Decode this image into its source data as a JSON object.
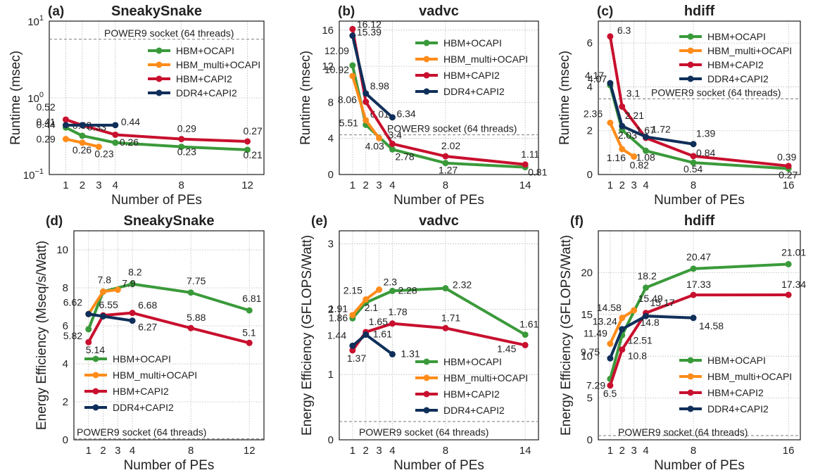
{
  "colors": {
    "HBM+OCAPI": "#3a9a3a",
    "HBM_multi+OCAPI": "#ff8c1a",
    "HBM+CAPI2": "#c8102e",
    "DDR4+CAPI2": "#0f2f5a"
  },
  "chart_data": [
    {
      "type": "line",
      "panel": "(a)",
      "title": "SneakySnake",
      "xlabel": "Number of PEs",
      "ylabel": "Runtime (msec)",
      "yscale": "log",
      "ylim": [
        0.1,
        10
      ],
      "xlim": [
        0,
        13
      ],
      "xticks": [
        1,
        2,
        3,
        4,
        8,
        12
      ],
      "yticks": [
        {
          "value": 0.1,
          "base": "10",
          "exp": "−1"
        },
        {
          "value": 1,
          "base": "10",
          "exp": "0"
        },
        {
          "value": 10,
          "base": "10",
          "exp": "1"
        }
      ],
      "grid": true,
      "legend": "upper-center",
      "ref": {
        "label": "POWER9 socket (64 threads)",
        "value": 5.8
      },
      "series": [
        {
          "name": "HBM+OCAPI",
          "x": [
            1,
            2,
            4,
            8,
            12
          ],
          "y": [
            0.41,
            0.32,
            0.26,
            0.23,
            0.21
          ],
          "labels": [
            "0.41",
            "0.32",
            "0.26",
            "0.23",
            "0.21"
          ]
        },
        {
          "name": "HBM_multi+OCAPI",
          "x": [
            1,
            2,
            3
          ],
          "y": [
            0.29,
            0.26,
            0.23
          ],
          "labels": [
            "0.29",
            "0.26",
            "0.23"
          ]
        },
        {
          "name": "HBM+CAPI2",
          "x": [
            1,
            2,
            4,
            8,
            12
          ],
          "y": [
            0.52,
            0.44,
            0.33,
            0.29,
            0.27
          ],
          "labels": [
            "0.52",
            "",
            "0.33",
            "0.29",
            "0.27"
          ]
        },
        {
          "name": "DDR4+CAPI2",
          "x": [
            1,
            2,
            4
          ],
          "y": [
            0.44,
            0.44,
            0.44
          ],
          "labels": [
            "0.44",
            "",
            "0.44"
          ]
        }
      ]
    },
    {
      "type": "line",
      "panel": "(b)",
      "title": "vadvc",
      "xlabel": "Number of PEs",
      "ylabel": "Runtime (msec)",
      "yscale": "linear",
      "ylim": [
        0,
        17
      ],
      "xlim": [
        0,
        15
      ],
      "xticks": [
        1,
        2,
        3,
        4,
        8,
        14
      ],
      "yticks": [
        0,
        4,
        8,
        12,
        16
      ],
      "grid": true,
      "legend": "upper-right",
      "ref": {
        "label": "POWER9 socket (64 threads)",
        "value": 4.4
      },
      "series": [
        {
          "name": "HBM+OCAPI",
          "x": [
            1,
            2,
            4,
            8,
            14
          ],
          "y": [
            12.09,
            5.51,
            2.78,
            1.27,
            0.81
          ],
          "labels": [
            "12.09",
            "5.51",
            "2.78",
            "1.27",
            "0.81"
          ]
        },
        {
          "name": "HBM_multi+OCAPI",
          "x": [
            1,
            2,
            3
          ],
          "y": [
            10.92,
            6.01,
            4.03
          ],
          "labels": [
            "10.92",
            "6.01",
            "4.03"
          ]
        },
        {
          "name": "HBM+CAPI2",
          "x": [
            1,
            2,
            4,
            8,
            14
          ],
          "y": [
            16.12,
            8.06,
            3.4,
            2.02,
            1.11
          ],
          "labels": [
            "16.12",
            "8.06",
            "3.4",
            "2.02",
            "1.11"
          ]
        },
        {
          "name": "DDR4+CAPI2",
          "x": [
            1,
            2,
            4
          ],
          "y": [
            15.39,
            8.98,
            6.34
          ],
          "labels": [
            "15.39",
            "8.98",
            "6.34"
          ]
        }
      ]
    },
    {
      "type": "line",
      "panel": "(c)",
      "title": "hdiff",
      "xlabel": "Number of PEs",
      "ylabel": "Runtime (msec)",
      "yscale": "linear",
      "ylim": [
        0,
        7
      ],
      "xlim": [
        0,
        17
      ],
      "xticks": [
        1,
        2,
        3,
        4,
        8,
        16
      ],
      "yticks": [
        0,
        2,
        4,
        6
      ],
      "grid": true,
      "legend": "upper-right",
      "ref": {
        "label": "POWER9 socket (64 threads)",
        "value": 3.45
      },
      "series": [
        {
          "name": "HBM+OCAPI",
          "x": [
            1,
            2,
            4,
            8,
            16
          ],
          "y": [
            4.07,
            2.03,
            1.08,
            0.54,
            0.27
          ],
          "labels": [
            "4.07",
            "2.03",
            "1.08",
            "0.54",
            "0.27"
          ]
        },
        {
          "name": "HBM_multi+OCAPI",
          "x": [
            1,
            2,
            3
          ],
          "y": [
            2.36,
            1.16,
            0.82
          ],
          "labels": [
            "2.36",
            "1.16",
            "0.82"
          ]
        },
        {
          "name": "HBM+CAPI2",
          "x": [
            1,
            2,
            4,
            8,
            16
          ],
          "y": [
            6.3,
            3.1,
            1.67,
            0.84,
            0.39
          ],
          "labels": [
            "6.3",
            "3.1",
            "1.67",
            "0.84",
            "0.39"
          ]
        },
        {
          "name": "DDR4+CAPI2",
          "x": [
            1,
            2,
            4,
            8
          ],
          "y": [
            4.17,
            2.21,
            1.72,
            1.39
          ],
          "labels": [
            "4.17",
            "2.21",
            "1.72",
            "1.39"
          ]
        }
      ]
    },
    {
      "type": "line",
      "panel": "(d)",
      "title": "SneakySnake",
      "xlabel": "Number of PEs",
      "ylabel": "Energy Efficiency (Mseq/s/Watt)",
      "yscale": "linear",
      "ylim": [
        0,
        11
      ],
      "xlim": [
        0,
        13
      ],
      "xticks": [
        1,
        2,
        3,
        4,
        8,
        12
      ],
      "yticks": [
        0,
        2,
        4,
        6,
        8,
        10
      ],
      "grid": true,
      "legend": "lower-left",
      "ref": {
        "label": "POWER9 socket (64 threads)",
        "value": 0.05
      },
      "series": [
        {
          "name": "HBM+OCAPI",
          "x": [
            1,
            2,
            4,
            8,
            12
          ],
          "y": [
            5.82,
            7.8,
            8.2,
            7.75,
            6.81
          ],
          "labels": [
            "5.82",
            "7.8",
            "8.2",
            "7.75",
            "6.81"
          ]
        },
        {
          "name": "HBM_multi+OCAPI",
          "x": [
            1,
            2,
            3
          ],
          "y": [
            6.62,
            7.8,
            7.9
          ],
          "labels": [
            "6.62",
            "",
            "7.9"
          ]
        },
        {
          "name": "HBM+CAPI2",
          "x": [
            1,
            2,
            4,
            8,
            12
          ],
          "y": [
            5.14,
            6.55,
            6.68,
            5.88,
            5.1
          ],
          "labels": [
            "5.14",
            "6.55",
            "6.68",
            "5.88",
            "5.1"
          ]
        },
        {
          "name": "DDR4+CAPI2",
          "x": [
            1,
            2,
            4
          ],
          "y": [
            6.62,
            6.5,
            6.27
          ],
          "labels": [
            "",
            "",
            "6.27"
          ]
        }
      ]
    },
    {
      "type": "line",
      "panel": "(e)",
      "title": "vadvc",
      "xlabel": "Number of PEs",
      "ylabel": "Energy Efficiency (GFLOPS/Watt)",
      "yscale": "linear",
      "ylim": [
        0,
        3.2
      ],
      "xlim": [
        0,
        15
      ],
      "xticks": [
        1,
        2,
        3,
        4,
        8,
        14
      ],
      "yticks": [
        0,
        1,
        2,
        3
      ],
      "grid": true,
      "legend": "lower-right",
      "ref": {
        "label": "POWER9 socket (64 threads)",
        "value": 0.28
      },
      "series": [
        {
          "name": "HBM+OCAPI",
          "x": [
            1,
            2,
            4,
            8,
            14
          ],
          "y": [
            1.86,
            2.1,
            2.28,
            2.32,
            1.61
          ],
          "labels": [
            "1.86",
            "2.1",
            "2.28",
            "2.32",
            "1.61"
          ]
        },
        {
          "name": "HBM_multi+OCAPI",
          "x": [
            1,
            2,
            3
          ],
          "y": [
            1.91,
            2.15,
            2.3
          ],
          "labels": [
            "1.91",
            "2.15",
            "2.3"
          ]
        },
        {
          "name": "HBM+CAPI2",
          "x": [
            1,
            2,
            4,
            8,
            14
          ],
          "y": [
            1.37,
            1.65,
            1.78,
            1.71,
            1.45
          ],
          "labels": [
            "1.37",
            "1.65",
            "1.78",
            "1.71",
            "1.45"
          ]
        },
        {
          "name": "DDR4+CAPI2",
          "x": [
            1,
            2,
            4
          ],
          "y": [
            1.44,
            1.61,
            1.31
          ],
          "labels": [
            "1.44",
            "1.61",
            "1.31"
          ]
        }
      ]
    },
    {
      "type": "line",
      "panel": "(f)",
      "title": "hdiff",
      "xlabel": "Number of PEs",
      "ylabel": "Energy Efficiency (GFLOPS/Watt)",
      "yscale": "linear",
      "ylim": [
        0,
        25
      ],
      "xlim": [
        0,
        17
      ],
      "xticks": [
        1,
        2,
        3,
        4,
        8,
        16
      ],
      "yticks": [
        0,
        5,
        10,
        15,
        20
      ],
      "grid": true,
      "legend": "lower-right",
      "ref": {
        "label": "POWER9 socket (64 threads)",
        "value": 0.5
      },
      "series": [
        {
          "name": "HBM+OCAPI",
          "x": [
            1,
            2,
            4,
            8,
            16
          ],
          "y": [
            7.29,
            12.51,
            18.2,
            20.47,
            21.01
          ],
          "labels": [
            "7.29",
            "12.51",
            "18.2",
            "20.47",
            "21.01"
          ]
        },
        {
          "name": "HBM_multi+OCAPI",
          "x": [
            1,
            2,
            3
          ],
          "y": [
            11.49,
            14.58,
            15.49
          ],
          "labels": [
            "11.49",
            "14.58",
            "15.49"
          ]
        },
        {
          "name": "HBM+CAPI2",
          "x": [
            1,
            2,
            4,
            8,
            16
          ],
          "y": [
            6.5,
            10.8,
            15.17,
            17.33,
            17.34
          ],
          "labels": [
            "6.5",
            "10.8",
            "15.17",
            "17.33",
            "17.34"
          ]
        },
        {
          "name": "DDR4+CAPI2",
          "x": [
            1,
            2,
            4,
            8
          ],
          "y": [
            9.75,
            13.24,
            14.8,
            14.58
          ],
          "labels": [
            "9.75",
            "13.24",
            "14.8",
            "14.58"
          ]
        }
      ]
    }
  ]
}
